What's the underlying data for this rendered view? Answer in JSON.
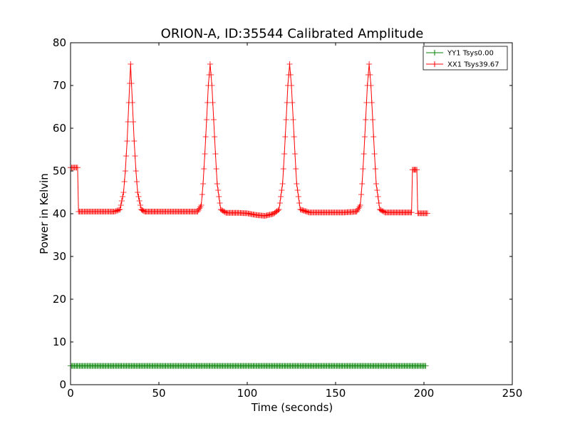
{
  "chart_data": {
    "type": "line",
    "title": "ORION-A, ID:35544 Calibrated Amplitude",
    "xlabel": "Time (seconds)",
    "ylabel": "Power in Kelvin",
    "xlim": [
      0,
      250
    ],
    "ylim": [
      0,
      80
    ],
    "xticks": [
      "0",
      "50",
      "100",
      "150",
      "200",
      "250"
    ],
    "yticks": [
      "0",
      "10",
      "20",
      "30",
      "40",
      "50",
      "60",
      "70",
      "80"
    ],
    "grid": false,
    "legend_position": "top-right",
    "marker": "+",
    "series": [
      {
        "name": "YY1 Tsys0.00",
        "color": "#008000",
        "points": [
          [
            0,
            4.4
          ],
          [
            10,
            4.4
          ],
          [
            25,
            4.4
          ],
          [
            40,
            4.4
          ],
          [
            55,
            4.4
          ],
          [
            70,
            4.4
          ],
          [
            85,
            4.4
          ],
          [
            100,
            4.4
          ],
          [
            115,
            4.4
          ],
          [
            130,
            4.4
          ],
          [
            145,
            4.4
          ],
          [
            160,
            4.4
          ],
          [
            175,
            4.4
          ],
          [
            190,
            4.4
          ],
          [
            201,
            4.4
          ]
        ]
      },
      {
        "name": "XX1 Tsys39.67",
        "color": "#ff0000",
        "points": [
          [
            0,
            50.8
          ],
          [
            4,
            50.8
          ],
          [
            4.5,
            40.5
          ],
          [
            15,
            40.5
          ],
          [
            25,
            40.5
          ],
          [
            28,
            41
          ],
          [
            30,
            45
          ],
          [
            31,
            50
          ],
          [
            32,
            57
          ],
          [
            33,
            66
          ],
          [
            34,
            75
          ],
          [
            35,
            66
          ],
          [
            36,
            57
          ],
          [
            37,
            50
          ],
          [
            38,
            45
          ],
          [
            40,
            41
          ],
          [
            42,
            40.5
          ],
          [
            50,
            40.5
          ],
          [
            60,
            40.5
          ],
          [
            72,
            40.5
          ],
          [
            74,
            42
          ],
          [
            75,
            47
          ],
          [
            76,
            54
          ],
          [
            77,
            62
          ],
          [
            78,
            70
          ],
          [
            79,
            75
          ],
          [
            80,
            70
          ],
          [
            81,
            62
          ],
          [
            82,
            54
          ],
          [
            83,
            47
          ],
          [
            85,
            41
          ],
          [
            88,
            40.2
          ],
          [
            95,
            40.2
          ],
          [
            100,
            40.1
          ],
          [
            105,
            39.7
          ],
          [
            110,
            39.5
          ],
          [
            115,
            40
          ],
          [
            118,
            41
          ],
          [
            120,
            47
          ],
          [
            121,
            54
          ],
          [
            122,
            62
          ],
          [
            123,
            70
          ],
          [
            124,
            75
          ],
          [
            125,
            70
          ],
          [
            126,
            62
          ],
          [
            127,
            54
          ],
          [
            128,
            47
          ],
          [
            130,
            41
          ],
          [
            135,
            40.3
          ],
          [
            145,
            40.3
          ],
          [
            155,
            40.3
          ],
          [
            162,
            40.5
          ],
          [
            164,
            42
          ],
          [
            165,
            47
          ],
          [
            166,
            54
          ],
          [
            167,
            62
          ],
          [
            168,
            70
          ],
          [
            169,
            75
          ],
          [
            170,
            70
          ],
          [
            171,
            62
          ],
          [
            172,
            54
          ],
          [
            173,
            47
          ],
          [
            175,
            41
          ],
          [
            178,
            40.3
          ],
          [
            185,
            40.3
          ],
          [
            193,
            40.3
          ],
          [
            193.5,
            50.3
          ],
          [
            196,
            50.3
          ],
          [
            196.5,
            40.1
          ],
          [
            202,
            40.1
          ]
        ]
      }
    ]
  }
}
